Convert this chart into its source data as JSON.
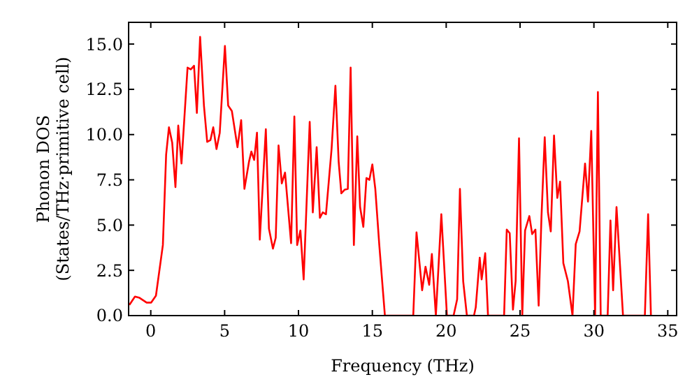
{
  "chart_data": {
    "type": "line",
    "xlabel": "Frequency (THz)",
    "ylabel": "Phonon DOS\n(States/THz·primitive cell)",
    "xlim": [
      -1.5,
      35.6
    ],
    "ylim": [
      0,
      16.2
    ],
    "xticks": [
      0,
      5,
      10,
      15,
      20,
      25,
      30,
      35
    ],
    "yticks": [
      {
        "value": 0,
        "label": "0.0"
      },
      {
        "value": 2.5,
        "label": "2.5"
      },
      {
        "value": 5,
        "label": "5.0"
      },
      {
        "value": 7.5,
        "label": "7.5"
      },
      {
        "value": 10,
        "label": "10.0"
      },
      {
        "value": 12.5,
        "label": "12.5"
      },
      {
        "value": 15,
        "label": "15.0"
      }
    ],
    "grid": false,
    "marker": "none",
    "line_style": "solid",
    "series": [
      {
        "color": "#ff0000",
        "x": [
          -1.45,
          -1.07,
          -0.76,
          -0.28,
          0.03,
          0.35,
          0.82,
          1.04,
          1.23,
          1.45,
          1.67,
          1.86,
          2.08,
          2.49,
          2.71,
          2.93,
          3.12,
          3.34,
          3.6,
          3.82,
          4.04,
          4.23,
          4.45,
          4.67,
          5.02,
          5.24,
          5.49,
          5.87,
          6.12,
          6.34,
          6.65,
          6.81,
          7.0,
          7.19,
          7.38,
          7.79,
          8.0,
          8.27,
          8.46,
          8.65,
          8.87,
          9.09,
          9.5,
          9.72,
          9.91,
          10.13,
          10.35,
          10.76,
          10.97,
          11.23,
          11.45,
          11.64,
          11.86,
          12.24,
          12.5,
          12.72,
          12.9,
          13.12,
          13.34,
          13.53,
          13.75,
          13.98,
          14.17,
          14.39,
          14.6,
          14.8,
          15.0,
          15.2,
          15.47,
          15.85,
          17.77,
          17.99,
          18.37,
          18.6,
          18.85,
          19.03,
          19.3,
          19.67,
          20.05,
          20.5,
          20.74,
          20.93,
          21.15,
          21.4,
          21.88,
          22.0,
          22.27,
          22.4,
          22.64,
          22.83,
          23.92,
          24.1,
          24.3,
          24.52,
          24.7,
          24.93,
          25.15,
          25.34,
          25.63,
          25.82,
          26.04,
          26.26,
          26.45,
          26.67,
          26.89,
          27.08,
          27.3,
          27.52,
          27.71,
          27.93,
          28.24,
          28.55,
          28.77,
          29.03,
          29.4,
          29.6,
          29.82,
          30.08,
          30.27,
          30.46,
          30.93,
          31.12,
          31.3,
          31.53,
          31.97,
          33.45,
          33.67,
          33.86
        ],
        "values": [
          0.59,
          1.05,
          0.98,
          0.72,
          0.72,
          1.1,
          3.9,
          8.9,
          10.4,
          9.56,
          7.1,
          10.5,
          8.4,
          13.7,
          13.6,
          13.8,
          11.2,
          15.4,
          11.6,
          9.6,
          9.7,
          10.4,
          9.2,
          10.1,
          14.9,
          11.6,
          11.3,
          9.3,
          10.8,
          7.0,
          8.5,
          9.06,
          8.6,
          10.1,
          4.2,
          10.3,
          4.8,
          3.7,
          4.3,
          9.4,
          7.3,
          7.9,
          4.0,
          11.0,
          3.9,
          4.7,
          2.0,
          10.7,
          5.7,
          9.3,
          5.4,
          5.7,
          5.6,
          9.2,
          12.7,
          8.5,
          6.75,
          6.95,
          7.0,
          13.7,
          3.9,
          9.9,
          6.0,
          4.9,
          7.6,
          7.5,
          8.35,
          7.0,
          3.9,
          0,
          0,
          4.6,
          1.4,
          2.7,
          1.7,
          3.4,
          0,
          5.6,
          0,
          0,
          0.9,
          7.0,
          1.9,
          0,
          0,
          0.45,
          3.2,
          2.0,
          3.45,
          0,
          0,
          4.75,
          4.55,
          0.33,
          1.9,
          9.8,
          0,
          4.7,
          5.5,
          4.5,
          4.75,
          0.55,
          5.45,
          9.85,
          5.7,
          4.65,
          9.95,
          6.5,
          7.4,
          2.9,
          1.9,
          0,
          3.95,
          4.65,
          8.4,
          6.3,
          10.2,
          0,
          12.35,
          0,
          0,
          5.25,
          1.4,
          6.0,
          0,
          0,
          5.6,
          0
        ]
      }
    ]
  }
}
